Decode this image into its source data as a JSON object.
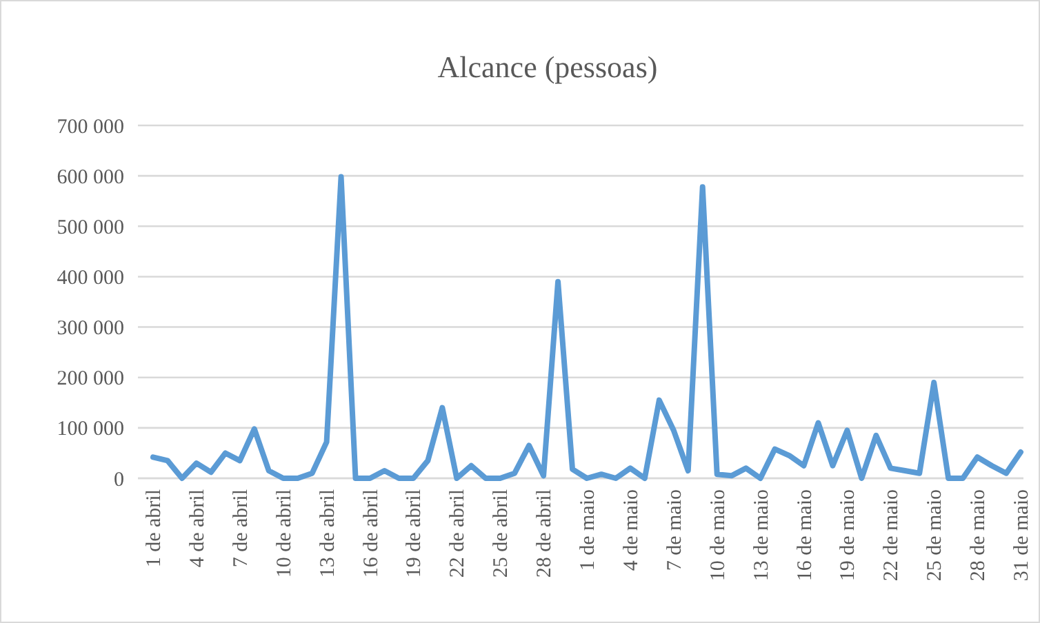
{
  "chart_data": {
    "type": "line",
    "title": "Alcance  (pessoas)",
    "categories": [
      "1 de abril",
      null,
      null,
      "4 de abril",
      null,
      null,
      "7 de abril",
      null,
      null,
      "10 de abril",
      null,
      null,
      "13 de abril",
      null,
      null,
      "16 de abril",
      null,
      null,
      "19 de abril",
      null,
      null,
      "22 de abril",
      null,
      null,
      "25 de abril",
      null,
      null,
      "28 de abril",
      null,
      null,
      "1 de maio",
      null,
      null,
      "4 de maio",
      null,
      null,
      "7 de maio",
      null,
      null,
      "10 de maio",
      null,
      null,
      "13 de maio",
      null,
      null,
      "16 de maio",
      null,
      null,
      "19 de maio",
      null,
      null,
      "22 de maio",
      null,
      null,
      "25 de maio",
      null,
      null,
      "28 de maio",
      null,
      null,
      "31 de maio"
    ],
    "series": [
      {
        "color": "#5b9bd5",
        "values": [
          42000,
          35000,
          0,
          30000,
          12000,
          50000,
          35000,
          98000,
          15000,
          0,
          0,
          10000,
          72000,
          598000,
          0,
          0,
          15000,
          0,
          0,
          35000,
          140000,
          0,
          25000,
          0,
          0,
          10000,
          65000,
          5000,
          390000,
          18000,
          0,
          8000,
          0,
          20000,
          0,
          155000,
          95000,
          15000,
          578000,
          8000,
          5000,
          20000,
          0,
          58000,
          45000,
          25000,
          110000,
          25000,
          95000,
          0,
          85000,
          20000,
          15000,
          10000,
          190000,
          0,
          0,
          42000,
          25000,
          10000,
          52000
        ]
      }
    ],
    "ylim": [
      0,
      700000
    ],
    "yticks": [
      {
        "value": 0,
        "label": "0"
      },
      {
        "value": 100000,
        "label": "100 000"
      },
      {
        "value": 200000,
        "label": "200 000"
      },
      {
        "value": 300000,
        "label": "300 000"
      },
      {
        "value": 400000,
        "label": "400 000"
      },
      {
        "value": 500000,
        "label": "500 000"
      },
      {
        "value": 600000,
        "label": "600 000"
      },
      {
        "value": 700000,
        "label": "700 000"
      }
    ],
    "grid": "y",
    "marker": "none",
    "line_style": "solid"
  }
}
